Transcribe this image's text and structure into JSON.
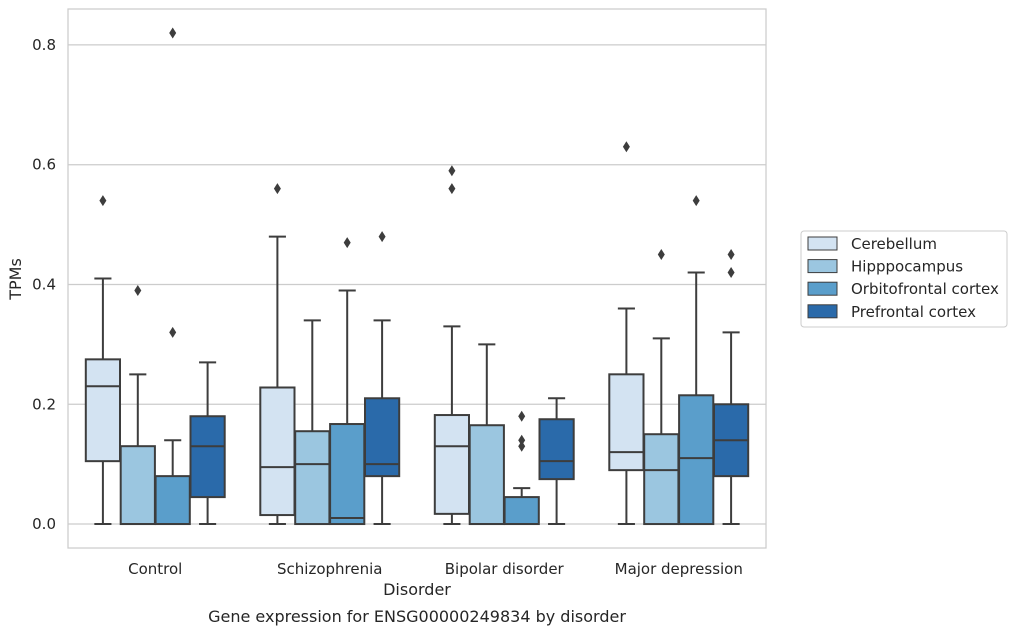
{
  "chart_data": {
    "type": "box",
    "title": "",
    "caption": "Gene expression for ENSG00000249834 by disorder",
    "xlabel": "Disorder",
    "ylabel": "TPMs",
    "ylim": [
      -0.04,
      0.86
    ],
    "yticks": [
      "0.0",
      "0.2",
      "0.4",
      "0.6",
      "0.8"
    ],
    "ytick_values": [
      0.0,
      0.2,
      0.4,
      0.6,
      0.8
    ],
    "grid": "horizontal",
    "legend_position": "right",
    "categories": [
      "Control",
      "Schizophrenia",
      "Bipolar disorder",
      "Major depression"
    ],
    "series": [
      {
        "name": "Cerebellum",
        "color": "#d3e3f2",
        "boxes": [
          {
            "whisker_low": 0.0,
            "q1": 0.105,
            "median": 0.23,
            "q3": 0.275,
            "whisker_high": 0.41,
            "outliers": [
              0.54
            ]
          },
          {
            "whisker_low": 0.0,
            "q1": 0.015,
            "median": 0.095,
            "q3": 0.228,
            "whisker_high": 0.48,
            "outliers": [
              0.56
            ]
          },
          {
            "whisker_low": 0.0,
            "q1": 0.017,
            "median": 0.13,
            "q3": 0.182,
            "whisker_high": 0.33,
            "outliers": [
              0.56,
              0.59
            ]
          },
          {
            "whisker_low": 0.0,
            "q1": 0.09,
            "median": 0.12,
            "q3": 0.25,
            "whisker_high": 0.36,
            "outliers": [
              0.63
            ]
          }
        ]
      },
      {
        "name": "Hipppocampus",
        "color": "#9bc6e0",
        "boxes": [
          {
            "whisker_low": 0.0,
            "q1": 0.0,
            "median": 0.0,
            "q3": 0.13,
            "whisker_high": 0.25,
            "outliers": [
              0.39
            ]
          },
          {
            "whisker_low": 0.0,
            "q1": 0.0,
            "median": 0.1,
            "q3": 0.155,
            "whisker_high": 0.34,
            "outliers": []
          },
          {
            "whisker_low": 0.0,
            "q1": 0.0,
            "median": 0.0,
            "q3": 0.165,
            "whisker_high": 0.3,
            "outliers": []
          },
          {
            "whisker_low": 0.0,
            "q1": 0.0,
            "median": 0.09,
            "q3": 0.15,
            "whisker_high": 0.31,
            "outliers": [
              0.45
            ]
          }
        ]
      },
      {
        "name": "Orbitofrontal cortex",
        "color": "#5a9ecb",
        "boxes": [
          {
            "whisker_low": 0.0,
            "q1": 0.0,
            "median": 0.0,
            "q3": 0.08,
            "whisker_high": 0.14,
            "outliers": [
              0.32,
              0.82
            ]
          },
          {
            "whisker_low": 0.0,
            "q1": 0.0,
            "median": 0.01,
            "q3": 0.167,
            "whisker_high": 0.39,
            "outliers": [
              0.47
            ]
          },
          {
            "whisker_low": 0.0,
            "q1": 0.0,
            "median": 0.0,
            "q3": 0.045,
            "whisker_high": 0.06,
            "outliers": [
              0.13,
              0.14,
              0.18
            ]
          },
          {
            "whisker_low": 0.0,
            "q1": 0.0,
            "median": 0.11,
            "q3": 0.215,
            "whisker_high": 0.42,
            "outliers": [
              0.54
            ]
          }
        ]
      },
      {
        "name": "Prefrontal cortex",
        "color": "#2a6aaa",
        "boxes": [
          {
            "whisker_low": 0.0,
            "q1": 0.045,
            "median": 0.13,
            "q3": 0.18,
            "whisker_high": 0.27,
            "outliers": []
          },
          {
            "whisker_low": 0.0,
            "q1": 0.08,
            "median": 0.1,
            "q3": 0.21,
            "whisker_high": 0.34,
            "outliers": [
              0.48
            ]
          },
          {
            "whisker_low": 0.0,
            "q1": 0.075,
            "median": 0.105,
            "q3": 0.175,
            "whisker_high": 0.21,
            "outliers": []
          },
          {
            "whisker_low": 0.0,
            "q1": 0.08,
            "median": 0.14,
            "q3": 0.2,
            "whisker_high": 0.32,
            "outliers": [
              0.42,
              0.45
            ]
          }
        ]
      }
    ]
  }
}
